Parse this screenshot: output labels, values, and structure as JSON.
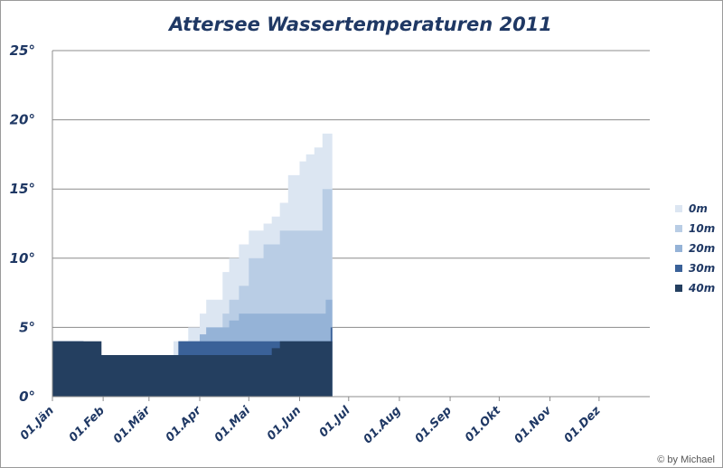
{
  "chart_data": {
    "type": "area",
    "title": "Attersee Wassertemperaturen 2011",
    "xlabel": "",
    "ylabel": "",
    "ylim": [
      0,
      25
    ],
    "xlim_days": [
      0,
      365
    ],
    "y_ticks": [
      "0°",
      "5°",
      "10°",
      "15°",
      "20°",
      "25°"
    ],
    "y_tick_values": [
      0,
      5,
      10,
      15,
      20,
      25
    ],
    "x_ticks": [
      "01.Jän",
      "01.Feb",
      "01.Mär",
      "01.Apr",
      "01.Mai",
      "01.Jun",
      "01.Jul",
      "01.Aug",
      "01.Sep",
      "01.Okt",
      "01.Nov",
      "01.Dez"
    ],
    "grid": "horizontal",
    "legend_position": "right",
    "x": [
      "01.Jän",
      "15.Jän",
      "20.Jän",
      "31.Jän",
      "01.Feb",
      "11.Feb",
      "01.Mär",
      "12.Mär",
      "16.Mär",
      "19.Mär",
      "25.Mär",
      "01.Apr",
      "05.Apr",
      "10.Apr",
      "15.Apr",
      "19.Apr",
      "25.Apr",
      "01.Mai",
      "05.Mai",
      "10.Mai",
      "15.Mai",
      "20.Mai",
      "25.Mai",
      "01.Jun",
      "05.Jun",
      "10.Jun",
      "15.Jun",
      "17.Jun",
      "20.Jun"
    ],
    "series": [
      {
        "name": "40m",
        "color": "#243f60",
        "values": [
          4,
          4,
          4,
          3,
          3,
          3,
          3,
          3,
          3,
          3,
          3,
          3,
          3,
          3,
          3,
          3,
          3,
          3,
          3,
          3,
          3.5,
          4,
          4,
          4,
          4,
          4,
          4,
          4,
          4
        ]
      },
      {
        "name": "30m",
        "color": "#3a6198",
        "values": [
          4,
          4,
          3,
          3,
          3,
          3,
          3,
          3,
          3,
          4,
          4,
          4,
          4,
          4,
          4,
          4,
          4,
          4,
          4,
          4,
          4,
          4,
          4,
          4,
          4,
          4,
          4,
          4,
          5
        ]
      },
      {
        "name": "20m",
        "color": "#95b3d7",
        "values": [
          4,
          4,
          3,
          3,
          3,
          3,
          3,
          3,
          3,
          4,
          4,
          4.5,
          5,
          5,
          5,
          5.5,
          6,
          6,
          6,
          6,
          6,
          6,
          6,
          6,
          6,
          6,
          6,
          7,
          7
        ]
      },
      {
        "name": "10m",
        "color": "#b9cde5",
        "values": [
          4,
          4,
          3,
          3,
          3,
          3,
          3,
          3,
          3,
          4,
          4,
          4.5,
          5,
          5,
          6,
          7,
          8,
          10,
          10,
          11,
          11,
          12,
          12,
          12,
          12,
          12,
          15,
          15,
          15
        ]
      },
      {
        "name": "0m",
        "color": "#dce6f2",
        "values": [
          4,
          4,
          3,
          3,
          3,
          3,
          3,
          3,
          4,
          4,
          5,
          6,
          7,
          7,
          9,
          10,
          11,
          12,
          12,
          12.5,
          13,
          14,
          16,
          17,
          17.5,
          18,
          19,
          19,
          19
        ]
      }
    ],
    "legend_order": [
      "0m",
      "10m",
      "20m",
      "30m",
      "40m"
    ]
  },
  "credit": "© by Michael"
}
